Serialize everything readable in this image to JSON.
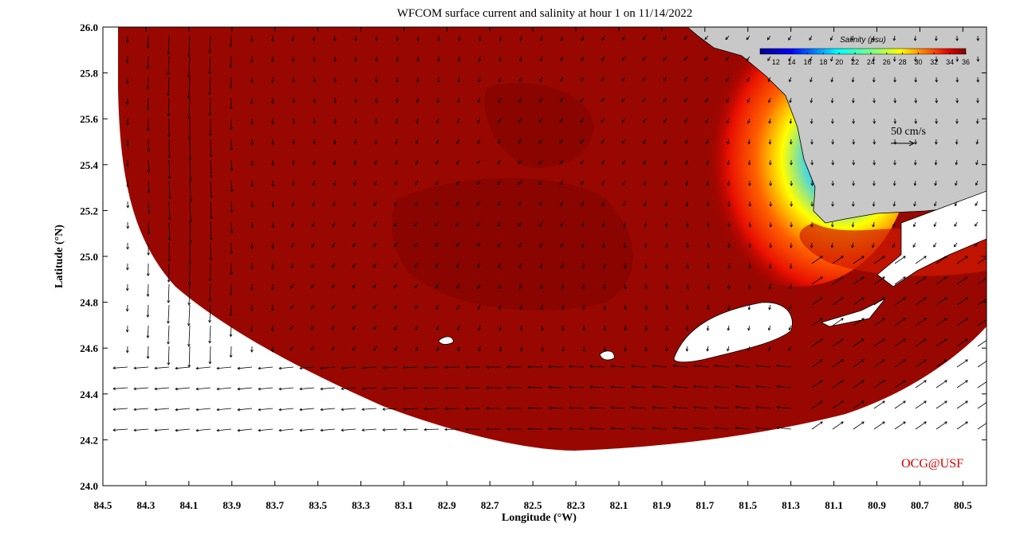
{
  "title": "WFCOM surface current and salinity at hour 1 on 11/14/2022",
  "map": {
    "x_axis": {
      "label": "Longitude (°W)",
      "lim": [
        84.5,
        80.39
      ],
      "ticks": [
        84.5,
        84.3,
        84.1,
        83.9,
        83.7,
        83.5,
        83.3,
        83.1,
        82.9,
        82.7,
        82.5,
        82.3,
        82.1,
        81.9,
        81.7,
        81.5,
        81.3,
        81.1,
        80.9,
        80.7,
        80.5
      ]
    },
    "y_axis": {
      "label": "Latitude (°N)",
      "lim": [
        24,
        26
      ],
      "ticks": [
        {
          "value": 24,
          "label": "24.0"
        },
        24.2,
        24.4,
        24.6,
        24.8,
        {
          "value": 25,
          "label": "25.0"
        },
        25.2,
        25.4,
        25.6,
        25.8,
        {
          "value": 26,
          "label": "26.0"
        }
      ]
    }
  },
  "colorbar": {
    "label": "Salinity (psu)",
    "lim": [
      10,
      36
    ],
    "ticks": [
      12,
      14,
      16,
      18,
      20,
      22,
      24,
      26,
      28,
      30,
      32,
      34,
      36
    ]
  },
  "scale_label": "50 cm/s",
  "credit": "OCG@USF"
}
